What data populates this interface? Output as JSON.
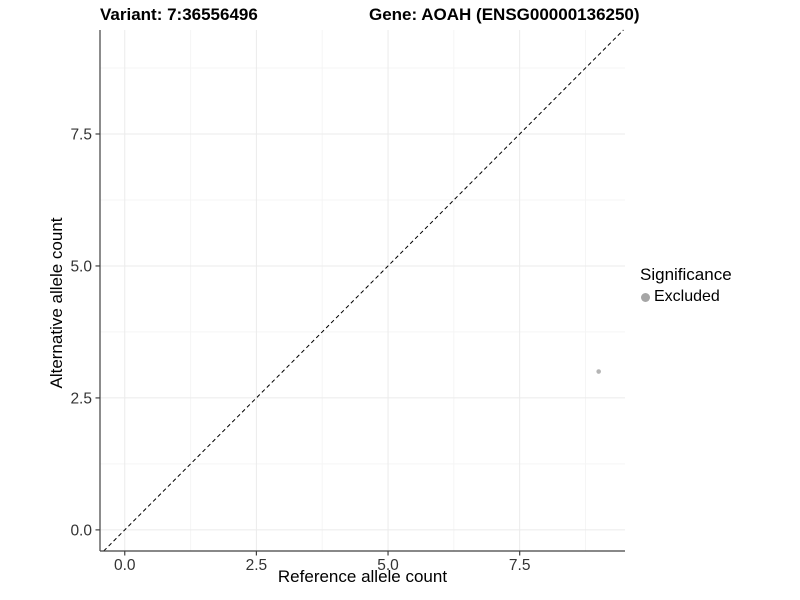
{
  "figure": {
    "background": "#ffffff"
  },
  "chart_data": {
    "type": "scatter",
    "titles": {
      "left": "Variant: 7:36556496",
      "right": "Gene: AOAH (ENSG00000136250)"
    },
    "xlabel": "Reference allele count",
    "ylabel": "Alternative allele count",
    "xlim": [
      -0.47,
      9.5
    ],
    "ylim": [
      -0.4,
      9.47
    ],
    "xticks": {
      "values": [
        0,
        2.5,
        5,
        7.5
      ],
      "labels": [
        "0.0",
        "2.5",
        "5.0",
        "7.5"
      ]
    },
    "yticks": {
      "values": [
        0,
        2.5,
        5,
        7.5
      ],
      "labels": [
        "0.0",
        "2.5",
        "5.0",
        "7.5"
      ]
    },
    "minor_xticks": [
      1.25,
      3.75,
      6.25,
      8.75
    ],
    "minor_yticks": [
      1.25,
      3.75,
      6.25,
      8.75
    ],
    "grid": true,
    "identity_line": {
      "slope": 1,
      "intercept": 0,
      "style": "dashed",
      "color": "#000000"
    },
    "series": [
      {
        "name": "Excluded",
        "color": "#b5b5b5",
        "points": [
          {
            "x": 9,
            "y": 3
          }
        ]
      }
    ],
    "legend": {
      "title": "Significance",
      "position": "right",
      "items": [
        {
          "label": "Excluded",
          "color": "#a6a6a6"
        }
      ]
    }
  },
  "colors": {
    "axis_line": "#404040",
    "tick_mark": "#404040",
    "tick_label": "#333333",
    "grid_major": "#ebebeb",
    "grid_minor": "#f5f5f5"
  }
}
